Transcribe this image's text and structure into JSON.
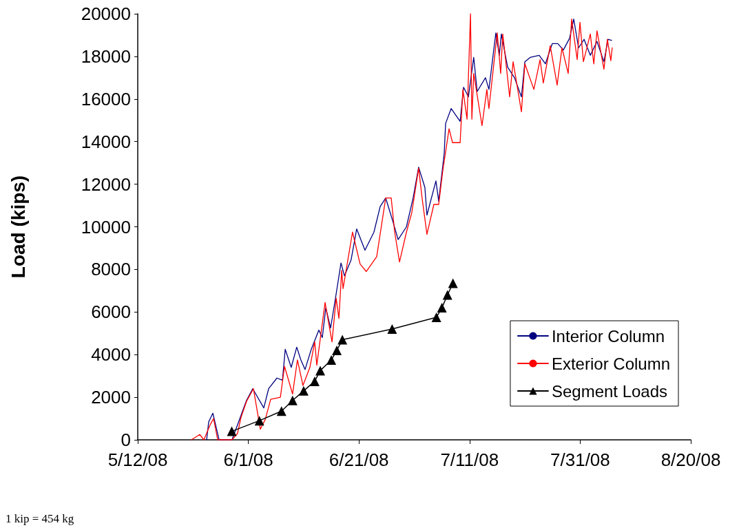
{
  "chart_data": {
    "type": "line",
    "ylabel": "Load (kips)",
    "annotations": [
      "1 kip = 454 kg"
    ],
    "xlim": [
      "2008-05-12",
      "2008-08-20"
    ],
    "xticks": [
      {
        "value": "2008-05-12",
        "label": "5/12/08"
      },
      {
        "value": "2008-06-01",
        "label": "6/1/08"
      },
      {
        "value": "2008-06-21",
        "label": "6/21/08"
      },
      {
        "value": "2008-07-11",
        "label": "7/11/08"
      },
      {
        "value": "2008-07-31",
        "label": "7/31/08"
      },
      {
        "value": "2008-08-20",
        "label": "8/20/08"
      }
    ],
    "ylim": [
      0,
      20000
    ],
    "yticks": [
      0,
      2000,
      4000,
      6000,
      8000,
      10000,
      12000,
      14000,
      16000,
      18000,
      20000
    ],
    "grid": false,
    "legend": "bottom right",
    "series": [
      {
        "name": "Interior Column",
        "color": "#000080",
        "marker": "none",
        "x": [
          "2008-05-24T11:00",
          "2008-05-24T20:00",
          "2008-05-25T14:00",
          "2008-05-26T17:00",
          "2008-05-29T01:00",
          "2008-05-31T16:00",
          "2008-06-01T19:00",
          "2008-06-03T19:00",
          "2008-06-04T16:00",
          "2008-06-06T04:00",
          "2008-06-07T04:00",
          "2008-06-07T16:00",
          "2008-06-08T18:00",
          "2008-06-09T18:00",
          "2008-06-10T12:00",
          "2008-06-11T06:00",
          "2008-06-12T09:00",
          "2008-06-13T18:00",
          "2008-06-14T09:00",
          "2008-06-15T00:00",
          "2008-06-15T21:00",
          "2008-06-16T21:00",
          "2008-06-17T18:00",
          "2008-06-18T09:00",
          "2008-06-19T14:00",
          "2008-06-20T14:00",
          "2008-06-22T02:00",
          "2008-06-23T17:00",
          "2008-06-24T20:00",
          "2008-06-25T20:00",
          "2008-06-27T02:00",
          "2008-06-28T02:00",
          "2008-06-29T14:00",
          "2008-06-30T19:00",
          "2008-07-01T19:00",
          "2008-07-02T22:00",
          "2008-07-03T07:00",
          "2008-07-04T22:00",
          "2008-07-05T10:00",
          "2008-07-06T10:00",
          "2008-07-06T16:00",
          "2008-07-07T16:00",
          "2008-07-09T07:00",
          "2008-07-09T22:00",
          "2008-07-10T19:00",
          "2008-07-11T18:00",
          "2008-07-12T09:00",
          "2008-07-13T21:00",
          "2008-07-14T12:00",
          "2008-07-15T18:00",
          "2008-07-16T09:00",
          "2008-07-16T18:00",
          "2008-07-17T21:00",
          "2008-07-19T03:00",
          "2008-07-20T09:00",
          "2008-07-21T00:00",
          "2008-07-21T23:00",
          "2008-07-23T14:00",
          "2008-07-24T17:00",
          "2008-07-25T23:00",
          "2008-07-26T23:00",
          "2008-07-27T23:00",
          "2008-07-29T02:00",
          "2008-07-29T20:00",
          "2008-07-30T17:00",
          "2008-07-31T17:00",
          "2008-08-01T20:00",
          "2008-08-03T01:00",
          "2008-08-04T07:00",
          "2008-08-05T01:00",
          "2008-08-05T16:00"
        ],
        "values": [
          0,
          850,
          1250,
          0,
          0,
          1850,
          2400,
          1500,
          2400,
          2900,
          2800,
          4250,
          3400,
          4350,
          3750,
          3300,
          4250,
          5150,
          4800,
          6200,
          5250,
          6850,
          8300,
          7700,
          8450,
          9900,
          8900,
          9750,
          10950,
          11350,
          10300,
          9400,
          10000,
          11350,
          12800,
          11850,
          10550,
          12150,
          11200,
          13450,
          14850,
          15550,
          14950,
          16550,
          16100,
          17950,
          16350,
          17000,
          16450,
          19100,
          18050,
          19050,
          17500,
          17000,
          16100,
          17750,
          17950,
          18050,
          17650,
          18600,
          18600,
          18300,
          18850,
          19750,
          18400,
          18800,
          18050,
          18700,
          17750,
          18800,
          18750
        ]
      },
      {
        "name": "Exterior Column",
        "color": "#ff0000",
        "marker": "none",
        "x": [
          "2008-05-21T17:00",
          "2008-05-23T05:00",
          "2008-05-23T23:00",
          "2008-05-25T02:00",
          "2008-05-25T17:00",
          "2008-05-26T11:00",
          "2008-05-29T01:00",
          "2008-05-30T01:00",
          "2008-05-30T16:00",
          "2008-05-31T16:00",
          "2008-06-01T22:00",
          "2008-06-03T04:00",
          "2008-06-04T01:00",
          "2008-06-05T01:00",
          "2008-06-06T19:00",
          "2008-06-07T13:00",
          "2008-06-09T00:00",
          "2008-06-09T21:00",
          "2008-06-10T21:00",
          "2008-06-12T03:00",
          "2008-06-13T00:00",
          "2008-06-13T09:00",
          "2008-06-14T21:00",
          "2008-06-16T03:00",
          "2008-06-16T21:00",
          "2008-06-17T09:00",
          "2008-06-17T21:00",
          "2008-06-18T03:00",
          "2008-06-19T20:00",
          "2008-06-21T05:00",
          "2008-06-22T08:00",
          "2008-06-24T05:00",
          "2008-06-25T20:00",
          "2008-06-26T20:00",
          "2008-06-27T11:00",
          "2008-06-28T08:00",
          "2008-06-29T14:00",
          "2008-06-30T13:00",
          "2008-07-01T19:00",
          "2008-07-02T10:00",
          "2008-07-03T07:00",
          "2008-07-04T13:00",
          "2008-07-05T10:00",
          "2008-07-06T04:00",
          "2008-07-07T07:00",
          "2008-07-07T22:00",
          "2008-07-09T07:00",
          "2008-07-09T19:00",
          "2008-07-10T13:00",
          "2008-07-11T04:00",
          "2008-07-11T10:00",
          "2008-07-11T18:00",
          "2008-07-13T06:00",
          "2008-07-14T03:00",
          "2008-07-14T12:00",
          "2008-07-16T00:00",
          "2008-07-16T15:00",
          "2008-07-17T00:00",
          "2008-07-18T06:00",
          "2008-07-18T21:00",
          "2008-07-20T09:00",
          "2008-07-21T00:00",
          "2008-07-22T15:00",
          "2008-07-23T18:00",
          "2008-07-24T08:00",
          "2008-07-25T14:00",
          "2008-07-26T20:00",
          "2008-07-27T17:00",
          "2008-07-28T20:00",
          "2008-07-29T11:00",
          "2008-07-30T11:00",
          "2008-07-30T23:00",
          "2008-07-31T14:00",
          "2008-08-01T20:00",
          "2008-08-02T11:00",
          "2008-08-03T01:00",
          "2008-08-04T07:00",
          "2008-08-04T22:00",
          "2008-08-05T13:00",
          "2008-08-05T19:00"
        ],
        "values": [
          0,
          250,
          0,
          700,
          1000,
          0,
          0,
          300,
          1050,
          1800,
          2400,
          500,
          950,
          1900,
          2000,
          3450,
          2150,
          3750,
          2550,
          3400,
          4600,
          3500,
          6450,
          4600,
          6650,
          5700,
          7950,
          7100,
          9750,
          8250,
          7900,
          8600,
          11350,
          11350,
          9750,
          8350,
          9750,
          10650,
          12750,
          11350,
          9650,
          11050,
          11050,
          12650,
          14600,
          13950,
          13950,
          16450,
          15050,
          20000,
          15050,
          17200,
          14750,
          16450,
          15550,
          19100,
          17200,
          19050,
          16100,
          17750,
          15400,
          17650,
          16450,
          17850,
          16750,
          18500,
          16650,
          18400,
          17200,
          19750,
          17850,
          19600,
          17750,
          19050,
          17650,
          19200,
          17400,
          18800,
          17800,
          18400
        ]
      },
      {
        "name": "Segment Loads",
        "color": "#000000",
        "marker": "triangle",
        "x": [
          "2008-05-29",
          "2008-06-03",
          "2008-06-07",
          "2008-06-09",
          "2008-06-11",
          "2008-06-13",
          "2008-06-14",
          "2008-06-16",
          "2008-06-17",
          "2008-06-18",
          "2008-06-27",
          "2008-07-05",
          "2008-07-06",
          "2008-07-07",
          "2008-07-08"
        ],
        "values": [
          400,
          900,
          1350,
          1850,
          2300,
          2750,
          3250,
          3750,
          4200,
          4700,
          5200,
          5750,
          6200,
          6800,
          7350
        ]
      }
    ]
  }
}
